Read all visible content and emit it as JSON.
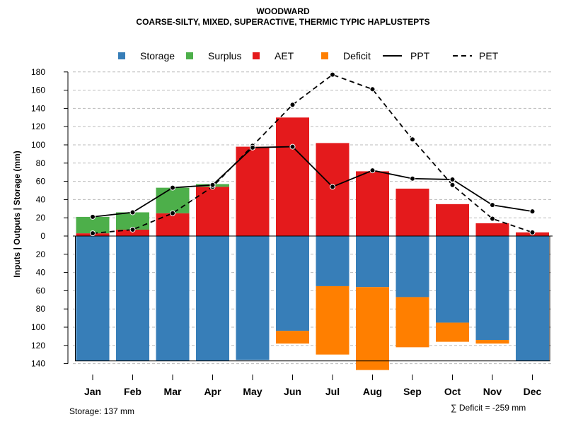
{
  "title_line1": "WOODWARD",
  "title_line2": "COARSE-SILTY, MIXED, SUPERACTIVE, THERMIC TYPIC HAPLUSTEPTS",
  "footer": {
    "storage_label": "Storage: 137 mm",
    "deficit_label": "∑ Deficit = -259 mm"
  },
  "colors": {
    "storage": "#377eb8",
    "surplus": "#4daf4a",
    "aet": "#e41a1c",
    "deficit": "#ff7f00",
    "line": "#000000",
    "grid": "#bbbbbb"
  },
  "chart_data": {
    "type": "bar",
    "ylabel": "Inputs | Outputs | Storage    (mm)",
    "ylim": [
      -140,
      180
    ],
    "yticks": [
      180,
      160,
      140,
      120,
      100,
      80,
      60,
      40,
      20,
      0,
      -20,
      -40,
      -60,
      -80,
      -100,
      -120,
      -140
    ],
    "ytick_labels": [
      "180",
      "160",
      "140",
      "120",
      "100",
      "80",
      "60",
      "40",
      "20",
      "0",
      "20",
      "40",
      "60",
      "80",
      "100",
      "120",
      "140"
    ],
    "grid": true,
    "legend_position": "top",
    "legend": [
      "Storage",
      "Surplus",
      "AET",
      "Deficit",
      "PPT",
      "PET"
    ],
    "categories": [
      "Jan",
      "Feb",
      "Mar",
      "Apr",
      "May",
      "Jun",
      "Jul",
      "Aug",
      "Sep",
      "Oct",
      "Nov",
      "Dec"
    ],
    "storage_capacity": 137,
    "storage_below": [
      137,
      137,
      137,
      137,
      136,
      104,
      55,
      56,
      67,
      95,
      114,
      137
    ],
    "deficit": [
      0,
      0,
      0,
      0,
      0,
      14,
      75,
      91,
      55,
      21,
      4,
      0
    ],
    "aet": [
      3,
      7,
      25,
      54,
      98,
      130,
      102,
      71,
      52,
      35,
      14,
      4
    ],
    "surplus": [
      18,
      19,
      28,
      3,
      0,
      0,
      0,
      0,
      0,
      0,
      0,
      0
    ],
    "ppt": [
      21,
      26,
      53,
      56,
      97,
      98,
      54,
      72,
      63,
      62,
      34,
      27
    ],
    "pet": [
      3,
      7,
      25,
      54,
      99,
      144,
      177,
      161,
      106,
      56,
      19,
      4
    ]
  }
}
